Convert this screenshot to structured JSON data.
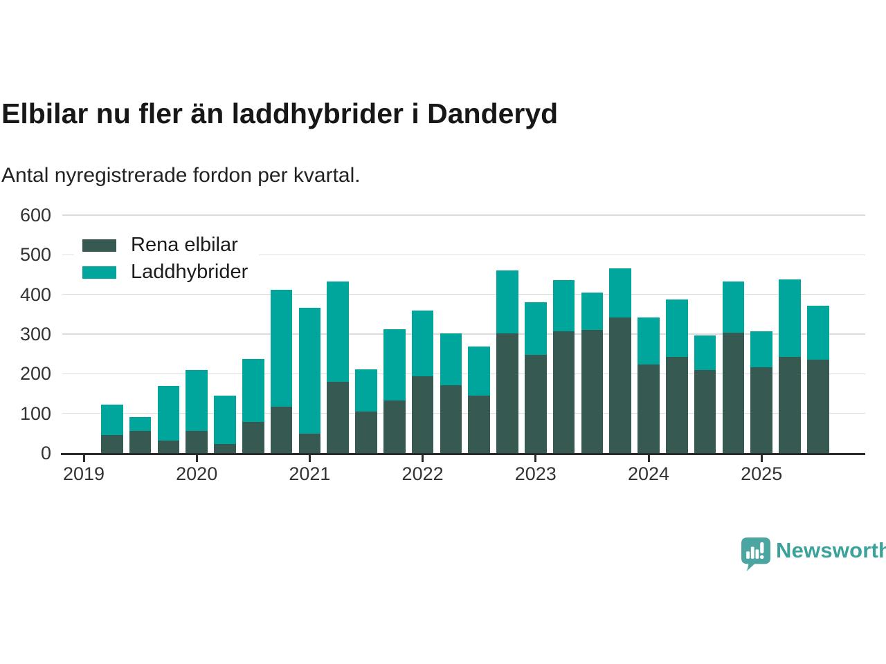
{
  "chart_data": {
    "type": "bar",
    "stacked": true,
    "title": "Elbilar nu fler än laddhybrider i Danderyd",
    "subtitle": "Antal nyregistrerade fordon per kvartal.",
    "categories": [
      "2019 Q2",
      "2019 Q3",
      "2019 Q4",
      "2020 Q1",
      "2020 Q2",
      "2020 Q3",
      "2020 Q4",
      "2021 Q1",
      "2021 Q2",
      "2021 Q3",
      "2021 Q4",
      "2022 Q1",
      "2022 Q2",
      "2022 Q3",
      "2022 Q4",
      "2023 Q1",
      "2023 Q2",
      "2023 Q3",
      "2023 Q4",
      "2024 Q1",
      "2024 Q2",
      "2024 Q3",
      "2024 Q4",
      "2025 Q1",
      "2025 Q2",
      "2025 Q3"
    ],
    "series": [
      {
        "name": "Rena elbilar",
        "color": "#365A52",
        "values": [
          45,
          55,
          31,
          56,
          23,
          78,
          117,
          49,
          179,
          105,
          133,
          194,
          171,
          145,
          301,
          247,
          307,
          310,
          341,
          223,
          242,
          210,
          304,
          216,
          242,
          236
        ]
      },
      {
        "name": "Laddhybrider",
        "color": "#00A59B",
        "values": [
          77,
          36,
          138,
          153,
          121,
          160,
          294,
          318,
          254,
          106,
          179,
          166,
          131,
          124,
          159,
          134,
          129,
          94,
          124,
          118,
          146,
          87,
          129,
          91,
          196,
          136
        ]
      }
    ],
    "ylim": [
      0,
      600
    ],
    "yticks": [
      0,
      100,
      200,
      300,
      400,
      500,
      600
    ],
    "xticks": [
      2019,
      2020,
      2021,
      2022,
      2023,
      2024,
      2025
    ],
    "grid": "horizontal",
    "legend_position": "top-left"
  },
  "colors": {
    "grid": "#dcdcdc",
    "axis": "#2b2b2b",
    "tick_label": "#333333",
    "brand_text": "#3BA29B",
    "brand_icon": "#4BA5A1"
  },
  "footer": {
    "brand": "Newsworthy"
  }
}
